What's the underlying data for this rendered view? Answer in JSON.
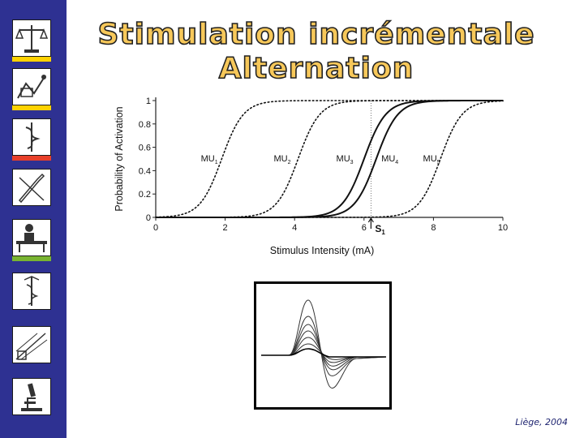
{
  "slide": {
    "title_line1": "Stimulation incrémentale",
    "title_line2": "Alternation",
    "footer": "Liège, 2004",
    "title_fill": "#f7c85a",
    "title_stroke": "#222222",
    "sidebar_color": "#2e3192"
  },
  "sidebar": {
    "icons": [
      {
        "name": "scales-icon",
        "accent": "#ffd200"
      },
      {
        "name": "hands-icon",
        "accent": "#ffd200"
      },
      {
        "name": "caduceus-icon",
        "accent": "#e8402a"
      },
      {
        "name": "pen-icon",
        "accent": "#2e3192"
      },
      {
        "name": "reader-icon",
        "accent": "#79b431"
      },
      {
        "name": "staff-icon",
        "accent": "#2e3192"
      },
      {
        "name": "building-icon",
        "accent": "#2e3192"
      },
      {
        "name": "microscope-icon",
        "accent": "#2e3192"
      }
    ]
  },
  "chart_data": {
    "type": "line",
    "title": "",
    "xlabel": "Stimulus Intensity (mA)",
    "ylabel": "Probability of Activation",
    "xlim": [
      0,
      10
    ],
    "ylim": [
      0,
      1
    ],
    "x_ticks": [
      "0",
      "2",
      "4",
      "6",
      "8",
      "10"
    ],
    "y_ticks": [
      "0",
      "0.2",
      "0.4",
      "0.6",
      "0.8",
      "1"
    ],
    "annotation": "S",
    "annotation_sub": "1",
    "annotation_x": 6.2,
    "series": [
      {
        "name": "MU",
        "sub": "1",
        "midpoint": 1.9,
        "style": "dotted",
        "label_x": 1.3,
        "label_y": 0.48
      },
      {
        "name": "MU",
        "sub": "2",
        "midpoint": 4.1,
        "style": "dotted",
        "label_x": 3.4,
        "label_y": 0.48
      },
      {
        "name": "MU",
        "sub": "3",
        "midpoint": 6.0,
        "style": "solid",
        "label_x": 5.2,
        "label_y": 0.48
      },
      {
        "name": "MU",
        "sub": "4",
        "midpoint": 6.35,
        "style": "solid",
        "label_x": 6.5,
        "label_y": 0.48
      },
      {
        "name": "MU",
        "sub": "5",
        "midpoint": 8.2,
        "style": "dotted",
        "label_x": 7.7,
        "label_y": 0.48
      }
    ]
  }
}
